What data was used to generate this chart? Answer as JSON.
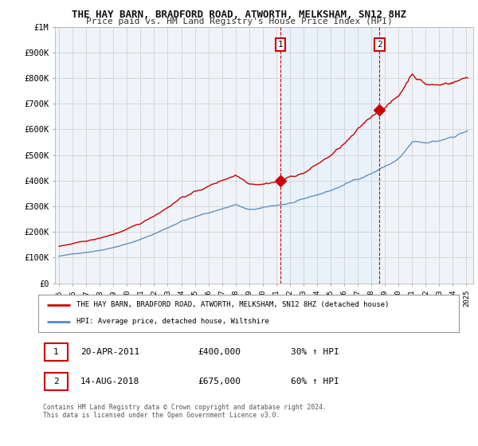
{
  "title": "THE HAY BARN, BRADFORD ROAD, ATWORTH, MELKSHAM, SN12 8HZ",
  "subtitle": "Price paid vs. HM Land Registry's House Price Index (HPI)",
  "property_color": "#cc0000",
  "hpi_color": "#5588bb",
  "shade_color": "#ddeeff",
  "background_color": "#ffffff",
  "plot_bg_color": "#f0f4f8",
  "grid_color": "#cccccc",
  "sale1_x": 2011.3,
  "sale1_price": 400000,
  "sale2_x": 2018.6,
  "sale2_price": 675000,
  "ylim": [
    0,
    1000000
  ],
  "xlim": [
    1994.7,
    2025.5
  ],
  "yticks": [
    0,
    100000,
    200000,
    300000,
    400000,
    500000,
    600000,
    700000,
    800000,
    900000,
    1000000
  ],
  "ytick_labels": [
    "£0",
    "£100K",
    "£200K",
    "£300K",
    "£400K",
    "£500K",
    "£600K",
    "£700K",
    "£800K",
    "£900K",
    "£1M"
  ],
  "xticks": [
    1995,
    1996,
    1997,
    1998,
    1999,
    2000,
    2001,
    2002,
    2003,
    2004,
    2005,
    2006,
    2007,
    2008,
    2009,
    2010,
    2011,
    2012,
    2013,
    2014,
    2015,
    2016,
    2017,
    2018,
    2019,
    2020,
    2021,
    2022,
    2023,
    2024,
    2025
  ],
  "legend_property": "THE HAY BARN, BRADFORD ROAD, ATWORTH, MELKSHAM, SN12 8HZ (detached house)",
  "legend_hpi": "HPI: Average price, detached house, Wiltshire",
  "table_row1_num": "1",
  "table_row1_date": "20-APR-2011",
  "table_row1_price": "£400,000",
  "table_row1_hpi": "30% ↑ HPI",
  "table_row2_num": "2",
  "table_row2_date": "14-AUG-2018",
  "table_row2_price": "£675,000",
  "table_row2_hpi": "60% ↑ HPI",
  "footnote": "Contains HM Land Registry data © Crown copyright and database right 2024.\nThis data is licensed under the Open Government Licence v3.0."
}
